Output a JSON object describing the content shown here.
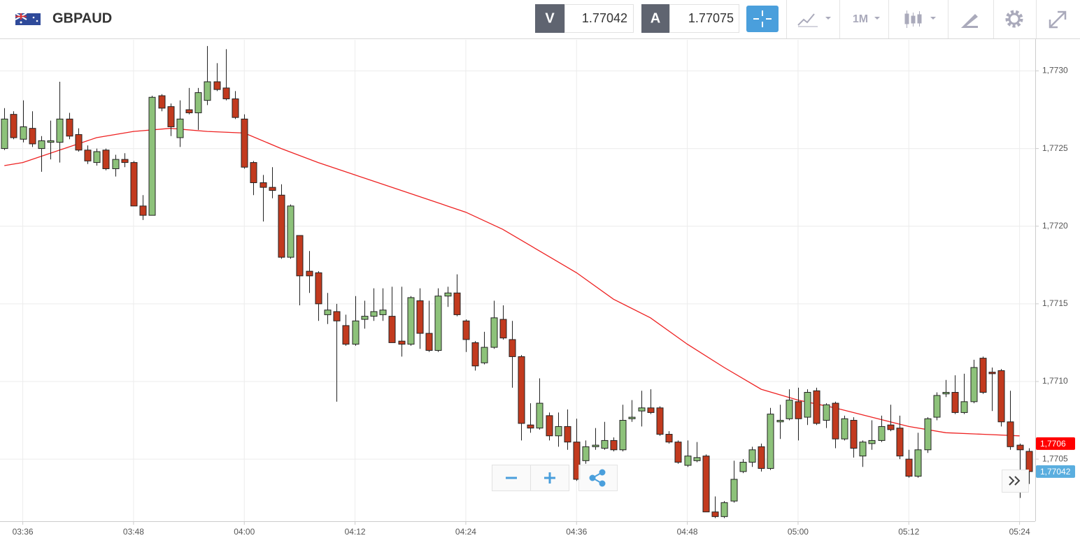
{
  "header": {
    "symbol": "GBPAUD",
    "bid_label": "V",
    "bid": 1.77042,
    "ask_label": "A",
    "ask": 1.77075,
    "timeframe": "1M"
  },
  "chart_data": {
    "type": "candlestick",
    "x": [
      "03:34",
      "03:35",
      "03:36",
      "03:37",
      "03:38",
      "03:39",
      "03:40",
      "03:41",
      "03:42",
      "03:43",
      "03:44",
      "03:45",
      "03:46",
      "03:47",
      "03:48",
      "03:49",
      "03:50",
      "03:51",
      "03:52",
      "03:53",
      "03:54",
      "03:55",
      "03:56",
      "03:57",
      "03:58",
      "03:59",
      "04:00",
      "04:01",
      "04:02",
      "04:03",
      "04:04",
      "04:05",
      "04:06",
      "04:07",
      "04:08",
      "04:09",
      "04:10",
      "04:11",
      "04:12",
      "04:13",
      "04:14",
      "04:15",
      "04:16",
      "04:17",
      "04:18",
      "04:19",
      "04:20",
      "04:21",
      "04:22",
      "04:23",
      "04:24",
      "04:25",
      "04:26",
      "04:27",
      "04:28",
      "04:29",
      "04:30",
      "04:31",
      "04:32",
      "04:33",
      "04:34",
      "04:35",
      "04:36",
      "04:37",
      "04:38",
      "04:39",
      "04:40",
      "04:41",
      "04:42",
      "04:43",
      "04:44",
      "04:45",
      "04:46",
      "04:47",
      "04:48",
      "04:49",
      "04:50",
      "04:51",
      "04:52",
      "04:53",
      "04:54",
      "04:55",
      "04:56",
      "04:57",
      "04:58",
      "04:59",
      "05:00",
      "05:01",
      "05:02",
      "05:03",
      "05:04",
      "05:05",
      "05:06",
      "05:07",
      "05:08",
      "05:09",
      "05:10",
      "05:11",
      "05:12",
      "05:13",
      "05:14",
      "05:15",
      "05:16",
      "05:17",
      "05:18",
      "05:19",
      "05:20",
      "05:21",
      "05:22",
      "05:23",
      "05:24",
      "05:25"
    ],
    "open": [
      1.7725,
      1.77272,
      1.77256,
      1.77263,
      1.7725,
      1.77254,
      1.77254,
      1.77269,
      1.77259,
      1.77249,
      1.77241,
      1.77249,
      1.77237,
      1.77243,
      1.77241,
      1.77213,
      1.77207,
      1.77284,
      1.77277,
      1.77257,
      1.77275,
      1.77273,
      1.77281,
      1.77293,
      1.77289,
      1.77282,
      1.77269,
      1.77241,
      1.77228,
      1.77225,
      1.7722,
      1.7718,
      1.77194,
      1.77171,
      1.7717,
      1.77143,
      1.77145,
      1.77136,
      1.77124,
      1.7714,
      1.77142,
      1.77143,
      1.77142,
      1.77126,
      1.77124,
      1.77152,
      1.77131,
      1.7712,
      1.77155,
      1.77157,
      1.77139,
      1.77125,
      1.77112,
      1.77122,
      1.7714,
      1.77127,
      1.77116,
      1.77072,
      1.7707,
      1.77078,
      1.77065,
      1.77071,
      1.77061,
      1.77049,
      1.77058,
      1.77057,
      1.77062,
      1.77056,
      1.77076,
      1.77081,
      1.77083,
      1.77083,
      1.77066,
      1.77061,
      1.77046,
      1.77049,
      1.77052,
      1.77016,
      1.77013,
      1.77023,
      1.77042,
      1.77048,
      1.77058,
      1.77044,
      1.77074,
      1.77076,
      1.77087,
      1.77077,
      1.77094,
      1.77075,
      1.77086,
      1.77063,
      1.77075,
      1.77052,
      1.7706,
      1.77062,
      1.77072,
      1.7707,
      1.7705,
      1.77039,
      1.77056,
      1.77077,
      1.77092,
      1.77093,
      1.7708,
      1.77087,
      1.77115,
      1.77106,
      1.77107,
      1.77074,
      1.77059,
      1.77055
    ],
    "high": [
      1.77276,
      1.77274,
      1.77281,
      1.77274,
      1.77258,
      1.77268,
      1.77293,
      1.77273,
      1.77263,
      1.77252,
      1.7725,
      1.7725,
      1.77246,
      1.77247,
      1.77242,
      1.7722,
      1.77284,
      1.77285,
      1.77279,
      1.77281,
      1.77289,
      1.77289,
      1.77316,
      1.77305,
      1.77314,
      1.77287,
      1.77272,
      1.77242,
      1.77233,
      1.77238,
      1.77227,
      1.77214,
      1.77194,
      1.77184,
      1.77171,
      1.77157,
      1.7715,
      1.77143,
      1.77155,
      1.77152,
      1.7716,
      1.7716,
      1.77161,
      1.77161,
      1.77155,
      1.7716,
      1.77152,
      1.7716,
      1.77161,
      1.77169,
      1.7714,
      1.77126,
      1.77132,
      1.77152,
      1.77149,
      1.77139,
      1.77117,
      1.77086,
      1.77102,
      1.7708,
      1.7708,
      1.77082,
      1.77076,
      1.77062,
      1.7707,
      1.77074,
      1.77064,
      1.77085,
      1.77088,
      1.77094,
      1.77095,
      1.77084,
      1.77068,
      1.77062,
      1.77062,
      1.77061,
      1.77053,
      1.77026,
      1.77023,
      1.77049,
      1.7705,
      1.77058,
      1.7706,
      1.77083,
      1.77085,
      1.77095,
      1.77096,
      1.77095,
      1.77096,
      1.77086,
      1.77087,
      1.77078,
      1.77077,
      1.77062,
      1.77075,
      1.77078,
      1.77085,
      1.77078,
      1.77056,
      1.77067,
      1.77077,
      1.77093,
      1.77101,
      1.77104,
      1.77105,
      1.77114,
      1.77116,
      1.77109,
      1.77108,
      1.77094,
      1.7706,
      1.77057
    ],
    "low": [
      1.77249,
      1.77256,
      1.77254,
      1.77251,
      1.77235,
      1.77243,
      1.77241,
      1.77256,
      1.77248,
      1.7724,
      1.77239,
      1.77236,
      1.77232,
      1.77238,
      1.77213,
      1.77204,
      1.77207,
      1.77274,
      1.77258,
      1.77251,
      1.77272,
      1.77262,
      1.77278,
      1.77287,
      1.77281,
      1.77269,
      1.77237,
      1.7722,
      1.77203,
      1.77218,
      1.77179,
      1.77179,
      1.77149,
      1.77157,
      1.77139,
      1.77137,
      1.77087,
      1.77123,
      1.77123,
      1.77134,
      1.77139,
      1.77139,
      1.77125,
      1.77116,
      1.77123,
      1.77121,
      1.77119,
      1.77119,
      1.77148,
      1.77142,
      1.77119,
      1.77107,
      1.77111,
      1.77121,
      1.77127,
      1.77096,
      1.77062,
      1.77067,
      1.77069,
      1.77062,
      1.77058,
      1.77056,
      1.77036,
      1.77047,
      1.77056,
      1.77056,
      1.77055,
      1.77055,
      1.77074,
      1.77071,
      1.77079,
      1.77065,
      1.7706,
      1.77047,
      1.77045,
      1.77048,
      1.77016,
      1.77012,
      1.77012,
      1.77022,
      1.77041,
      1.77045,
      1.77042,
      1.77043,
      1.77063,
      1.77075,
      1.77062,
      1.77072,
      1.77072,
      1.7707,
      1.77057,
      1.77062,
      1.77051,
      1.77045,
      1.77056,
      1.77061,
      1.77068,
      1.7705,
      1.77038,
      1.77038,
      1.77054,
      1.77075,
      1.7709,
      1.77079,
      1.77079,
      1.77086,
      1.77092,
      1.77081,
      1.77071,
      1.77056,
      1.77025,
      1.77034
    ],
    "close": [
      1.77269,
      1.77257,
      1.77264,
      1.77253,
      1.77255,
      1.77255,
      1.77269,
      1.77258,
      1.77249,
      1.77242,
      1.77248,
      1.77237,
      1.77243,
      1.77241,
      1.77213,
      1.77207,
      1.77283,
      1.77276,
      1.77264,
      1.77269,
      1.77273,
      1.77286,
      1.77293,
      1.77288,
      1.77282,
      1.7727,
      1.77238,
      1.77228,
      1.77225,
      1.77223,
      1.7718,
      1.77213,
      1.77168,
      1.77168,
      1.7715,
      1.77146,
      1.77139,
      1.77124,
      1.77139,
      1.77142,
      1.77145,
      1.77146,
      1.77125,
      1.77124,
      1.77154,
      1.77131,
      1.7712,
      1.77155,
      1.77157,
      1.77143,
      1.77127,
      1.7711,
      1.77122,
      1.77141,
      1.77128,
      1.77116,
      1.77073,
      1.7707,
      1.77086,
      1.77065,
      1.77071,
      1.77061,
      1.77037,
      1.77058,
      1.77059,
      1.77062,
      1.77056,
      1.77075,
      1.77077,
      1.77083,
      1.7708,
      1.77066,
      1.77061,
      1.77048,
      1.77052,
      1.77051,
      1.77016,
      1.77013,
      1.77022,
      1.77037,
      1.77048,
      1.77056,
      1.77044,
      1.77079,
      1.77075,
      1.77088,
      1.77076,
      1.77093,
      1.77073,
      1.77085,
      1.77063,
      1.77076,
      1.77057,
      1.77061,
      1.77062,
      1.77071,
      1.77069,
      1.77052,
      1.77039,
      1.77056,
      1.77076,
      1.77091,
      1.77093,
      1.7708,
      1.77087,
      1.77109,
      1.77093,
      1.77105,
      1.77074,
      1.77058,
      1.77056,
      1.77042
    ],
    "up_color": "#8dc27a",
    "down_color": "#c23a1e",
    "overlays": [
      {
        "type": "line",
        "color": "#ee2222",
        "x": [
          "03:34",
          "03:36",
          "03:40",
          "03:44",
          "03:48",
          "03:52",
          "03:56",
          "04:00",
          "04:04",
          "04:08",
          "04:12",
          "04:16",
          "04:20",
          "04:24",
          "04:28",
          "04:32",
          "04:36",
          "04:40",
          "04:44",
          "04:48",
          "04:52",
          "04:56",
          "05:00",
          "05:04",
          "05:08",
          "05:12",
          "05:16",
          "05:20",
          "05:24"
        ],
        "values": [
          1.77239,
          1.77241,
          1.77249,
          1.77257,
          1.77261,
          1.77263,
          1.77261,
          1.7726,
          1.7725,
          1.77241,
          1.77233,
          1.77225,
          1.77217,
          1.77209,
          1.77198,
          1.77184,
          1.7717,
          1.77153,
          1.77141,
          1.77124,
          1.77109,
          1.77095,
          1.77088,
          1.77083,
          1.77077,
          1.77071,
          1.77067,
          1.77066,
          1.77065
        ]
      }
    ],
    "xlim": [
      "03:33",
      "05:26"
    ],
    "xticks": [
      "03:36",
      "03:48",
      "04:00",
      "04:12",
      "04:24",
      "04:36",
      "04:48",
      "05:00",
      "05:12",
      "05:24"
    ],
    "ylim": [
      1.7701,
      1.7732
    ],
    "yticks": [
      {
        "value": 1.7705,
        "label": "1,7705"
      },
      {
        "value": 1.771,
        "label": "1,7710"
      },
      {
        "value": 1.7715,
        "label": "1,7715"
      },
      {
        "value": 1.772,
        "label": "1,7720"
      },
      {
        "value": 1.7725,
        "label": "1,7725"
      },
      {
        "value": 1.773,
        "label": "1,7730"
      }
    ],
    "grid": true,
    "price_tags": [
      {
        "value": 1.7706,
        "label": "1,7706",
        "color": "#ff0000"
      },
      {
        "value": 1.77042,
        "label": "1,77042",
        "color": "#5aaedf"
      }
    ]
  }
}
